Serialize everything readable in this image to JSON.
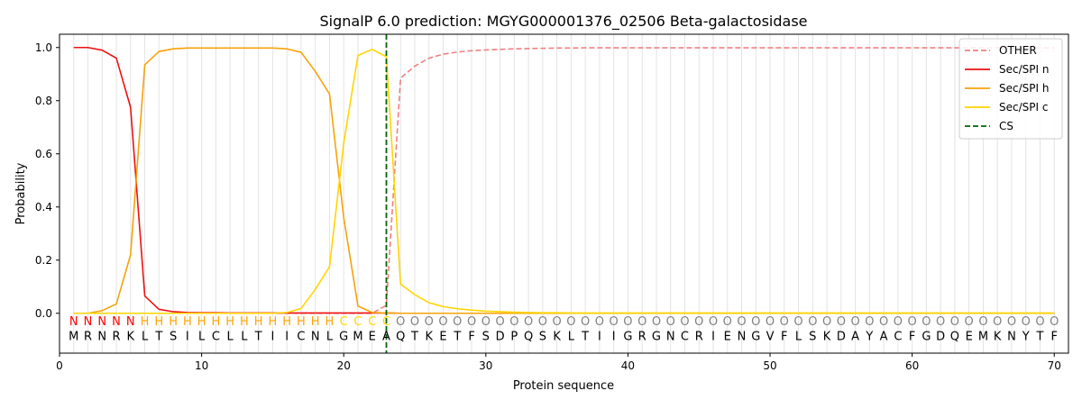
{
  "chart_data": {
    "type": "line",
    "title": "SignalP 6.0 prediction: MGYG000001376_02506 Beta-galactosidase",
    "xlabel": "Protein sequence",
    "ylabel": "Probability",
    "xlim": [
      0,
      71
    ],
    "ylim": [
      -0.15,
      1.05
    ],
    "xticks": [
      0,
      10,
      20,
      30,
      40,
      50,
      60,
      70
    ],
    "yticks": [
      0.0,
      0.2,
      0.4,
      0.6,
      0.8,
      1.0
    ],
    "grid": "vertical lines at each residue position",
    "legend_position": "top-right",
    "sequence": [
      "M",
      "R",
      "N",
      "R",
      "K",
      "L",
      "T",
      "S",
      "I",
      "L",
      "C",
      "L",
      "L",
      "T",
      "I",
      "I",
      "C",
      "N",
      "L",
      "G",
      "M",
      "E",
      "A",
      "Q",
      "T",
      "K",
      "E",
      "T",
      "F",
      "S",
      "D",
      "P",
      "Q",
      "S",
      "K",
      "L",
      "T",
      "I",
      "I",
      "G",
      "R",
      "G",
      "N",
      "C",
      "R",
      "I",
      "E",
      "N",
      "G",
      "V",
      "F",
      "L",
      "S",
      "K",
      "D",
      "A",
      "Y",
      "A",
      "C",
      "F",
      "G",
      "D",
      "Q",
      "E",
      "M",
      "K",
      "N",
      "Y",
      "T",
      "F"
    ],
    "region_labels": [
      "N",
      "N",
      "N",
      "N",
      "N",
      "H",
      "H",
      "H",
      "H",
      "H",
      "H",
      "H",
      "H",
      "H",
      "H",
      "H",
      "H",
      "H",
      "H",
      "C",
      "C",
      "C",
      "C",
      "O",
      "O",
      "O",
      "O",
      "O",
      "O",
      "O",
      "O",
      "O",
      "O",
      "O",
      "O",
      "O",
      "O",
      "O",
      "O",
      "O",
      "O",
      "O",
      "O",
      "O",
      "O",
      "O",
      "O",
      "O",
      "O",
      "O",
      "O",
      "O",
      "O",
      "O",
      "O",
      "O",
      "O",
      "O",
      "O",
      "O",
      "O",
      "O",
      "O",
      "O",
      "O",
      "O",
      "O",
      "O",
      "O",
      "O"
    ],
    "region_colors": {
      "N": "#ff0000",
      "H": "#ffa500",
      "C": "#ffd700",
      "O": "#808080"
    },
    "series": [
      {
        "name": "OTHER",
        "color": "#f08080",
        "dash": "dashed",
        "x_start": 1,
        "values": [
          0.0,
          0.0,
          0.0,
          0.0,
          0.0,
          0.0,
          0.0,
          0.0,
          0.0,
          0.0,
          0.0,
          0.0,
          0.0,
          0.0,
          0.0,
          0.0,
          0.0,
          0.0,
          0.0,
          0.0,
          0.0,
          0.0,
          0.03,
          0.885,
          0.93,
          0.96,
          0.975,
          0.983,
          0.988,
          0.991,
          0.993,
          0.995,
          0.996,
          0.997,
          0.998,
          0.998,
          0.999,
          0.999,
          0.999,
          0.999,
          0.999,
          0.999,
          0.999,
          0.999,
          0.999,
          0.999,
          0.999,
          0.999,
          0.999,
          0.999,
          0.999,
          0.999,
          0.999,
          0.999,
          0.999,
          0.999,
          0.999,
          0.999,
          0.999,
          0.999,
          0.999,
          0.999,
          0.999,
          0.999,
          0.999,
          0.999,
          0.999,
          0.999,
          0.999,
          0.999
        ]
      },
      {
        "name": "Sec/SPI n",
        "color": "#ee1111",
        "dash": "solid",
        "x_start": 1,
        "values": [
          1.0,
          1.0,
          0.99,
          0.96,
          0.775,
          0.065,
          0.015,
          0.006,
          0.003,
          0.002,
          0.002,
          0.001,
          0.001,
          0.001,
          0.001,
          0.001,
          0.001,
          0.001,
          0.001,
          0.001,
          0.001,
          0.001,
          0.001,
          0.0,
          0.0,
          0.0,
          0.0,
          0.0,
          0.0,
          0.0,
          0.0,
          0.0,
          0.0,
          0.0,
          0.0,
          0.0,
          0.0,
          0.0,
          0.0,
          0.0,
          0.0,
          0.0,
          0.0,
          0.0,
          0.0,
          0.0,
          0.0,
          0.0,
          0.0,
          0.0,
          0.0,
          0.0,
          0.0,
          0.0,
          0.0,
          0.0,
          0.0,
          0.0,
          0.0,
          0.0,
          0.0,
          0.0,
          0.0,
          0.0,
          0.0,
          0.0,
          0.0,
          0.0,
          0.0,
          0.0
        ]
      },
      {
        "name": "Sec/SPI h",
        "color": "#f5a30a",
        "dash": "solid",
        "x_start": 1,
        "values": [
          0.0,
          0.0,
          0.01,
          0.035,
          0.22,
          0.935,
          0.985,
          0.995,
          0.998,
          0.998,
          0.998,
          0.998,
          0.998,
          0.998,
          0.998,
          0.995,
          0.982,
          0.91,
          0.825,
          0.36,
          0.027,
          0.003,
          0.001,
          0.0,
          0.0,
          0.0,
          0.0,
          0.0,
          0.0,
          0.0,
          0.0,
          0.0,
          0.0,
          0.0,
          0.0,
          0.0,
          0.0,
          0.0,
          0.0,
          0.0,
          0.0,
          0.0,
          0.0,
          0.0,
          0.0,
          0.0,
          0.0,
          0.0,
          0.0,
          0.0,
          0.0,
          0.0,
          0.0,
          0.0,
          0.0,
          0.0,
          0.0,
          0.0,
          0.0,
          0.0,
          0.0,
          0.0,
          0.0,
          0.0,
          0.0,
          0.0,
          0.0,
          0.0,
          0.0,
          0.0
        ]
      },
      {
        "name": "Sec/SPI c",
        "color": "#ffd500",
        "dash": "solid",
        "x_start": 1,
        "values": [
          0.0,
          0.0,
          0.0,
          0.0,
          0.0,
          0.0,
          0.0,
          0.0,
          0.0,
          0.0,
          0.0,
          0.0,
          0.0,
          0.0,
          0.0,
          0.003,
          0.018,
          0.09,
          0.175,
          0.64,
          0.97,
          0.993,
          0.965,
          0.11,
          0.07,
          0.04,
          0.025,
          0.017,
          0.012,
          0.008,
          0.006,
          0.004,
          0.003,
          0.002,
          0.002,
          0.001,
          0.001,
          0.001,
          0.001,
          0.001,
          0.001,
          0.001,
          0.001,
          0.001,
          0.001,
          0.001,
          0.001,
          0.001,
          0.001,
          0.001,
          0.001,
          0.001,
          0.001,
          0.001,
          0.001,
          0.001,
          0.001,
          0.001,
          0.001,
          0.001,
          0.001,
          0.001,
          0.001,
          0.001,
          0.001,
          0.001,
          0.001,
          0.001,
          0.001,
          0.001
        ]
      }
    ],
    "cleavage_site": {
      "name": "CS",
      "x": 23,
      "color": "#006400",
      "dash": "dashed"
    }
  }
}
